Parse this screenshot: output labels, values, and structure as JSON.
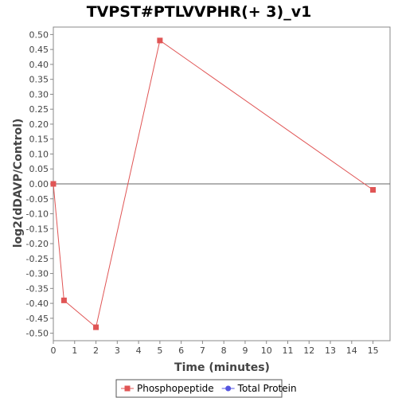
{
  "chart_data": {
    "type": "line",
    "title": "TVPST#PTLVVPHR(+ 3)_v1",
    "xlabel": "Time (minutes)",
    "ylabel": "log2(dDAVP/Control)",
    "xlim": [
      0,
      15.8
    ],
    "ylim": [
      -0.525,
      0.525
    ],
    "x_ticks": [
      0,
      1,
      2,
      3,
      4,
      5,
      6,
      7,
      8,
      9,
      10,
      11,
      12,
      13,
      14,
      15
    ],
    "y_ticks": [
      0.5,
      0.45,
      0.4,
      0.35,
      0.3,
      0.25,
      0.2,
      0.15,
      0.1,
      0.05,
      0.0,
      -0.05,
      -0.1,
      -0.15,
      -0.2,
      -0.25,
      -0.3,
      -0.35,
      -0.4,
      -0.45,
      -0.5
    ],
    "y_tick_labels": [
      "0.50",
      "0.45",
      "0.40",
      "0.35",
      "0.30",
      "0.25",
      "0.20",
      "0.15",
      "0.10",
      "0.05",
      "0.00",
      "-0.05",
      "-0.10",
      "-0.15",
      "-0.20",
      "-0.25",
      "-0.30",
      "-0.35",
      "-0.40",
      "-0.45",
      "-0.50"
    ],
    "zero_line": true,
    "grid": false,
    "legend_position": "bottom",
    "series": [
      {
        "name": "Phosphopeptide",
        "color": "#e05555",
        "marker": "square",
        "points": [
          {
            "x": 0,
            "y": 0.0
          },
          {
            "x": 0.5,
            "y": -0.39
          },
          {
            "x": 2,
            "y": -0.48
          },
          {
            "x": 5,
            "y": 0.48
          },
          {
            "x": 15,
            "y": -0.02
          }
        ]
      },
      {
        "name": "Total Protein",
        "color": "#5555e0",
        "marker": "circle",
        "points": []
      }
    ]
  }
}
